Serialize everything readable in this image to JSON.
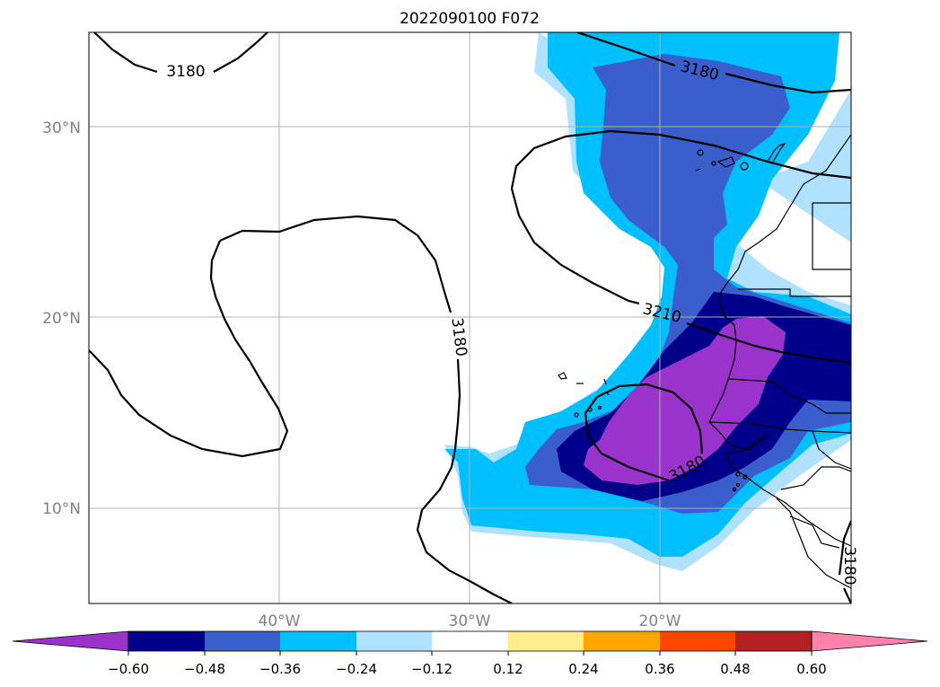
{
  "title": "2022090100 F072",
  "map": {
    "lat_labels": [
      {
        "text": "30°N",
        "value": 30
      },
      {
        "text": "20°N",
        "value": 20
      },
      {
        "text": "10°N",
        "value": 10
      }
    ],
    "lon_labels": [
      {
        "text": "40°W",
        "value": -40
      },
      {
        "text": "30°W",
        "value": -30
      },
      {
        "text": "20°W",
        "value": -20
      }
    ],
    "contour_labels": [
      {
        "id": "c3180-nw",
        "text": "3180"
      },
      {
        "id": "c3180-ne",
        "text": "3180"
      },
      {
        "id": "c3180-mid",
        "text": "3180"
      },
      {
        "id": "c3210",
        "text": "3210"
      },
      {
        "id": "c3180-s",
        "text": "3180"
      },
      {
        "id": "c3180-se",
        "text": "3180"
      }
    ]
  },
  "colorbar": {
    "ticks": [
      "−0.60",
      "−0.48",
      "−0.36",
      "−0.24",
      "−0.12",
      "0.12",
      "0.24",
      "0.36",
      "0.48",
      "0.60"
    ],
    "colors": [
      "#9933cc",
      "#00008b",
      "#3a5fcd",
      "#00bfff",
      "#b0e2ff",
      "#ffffff",
      "#ffec8b",
      "#ffa500",
      "#ff4500",
      "#b22222",
      "#ff82ab"
    ]
  }
}
